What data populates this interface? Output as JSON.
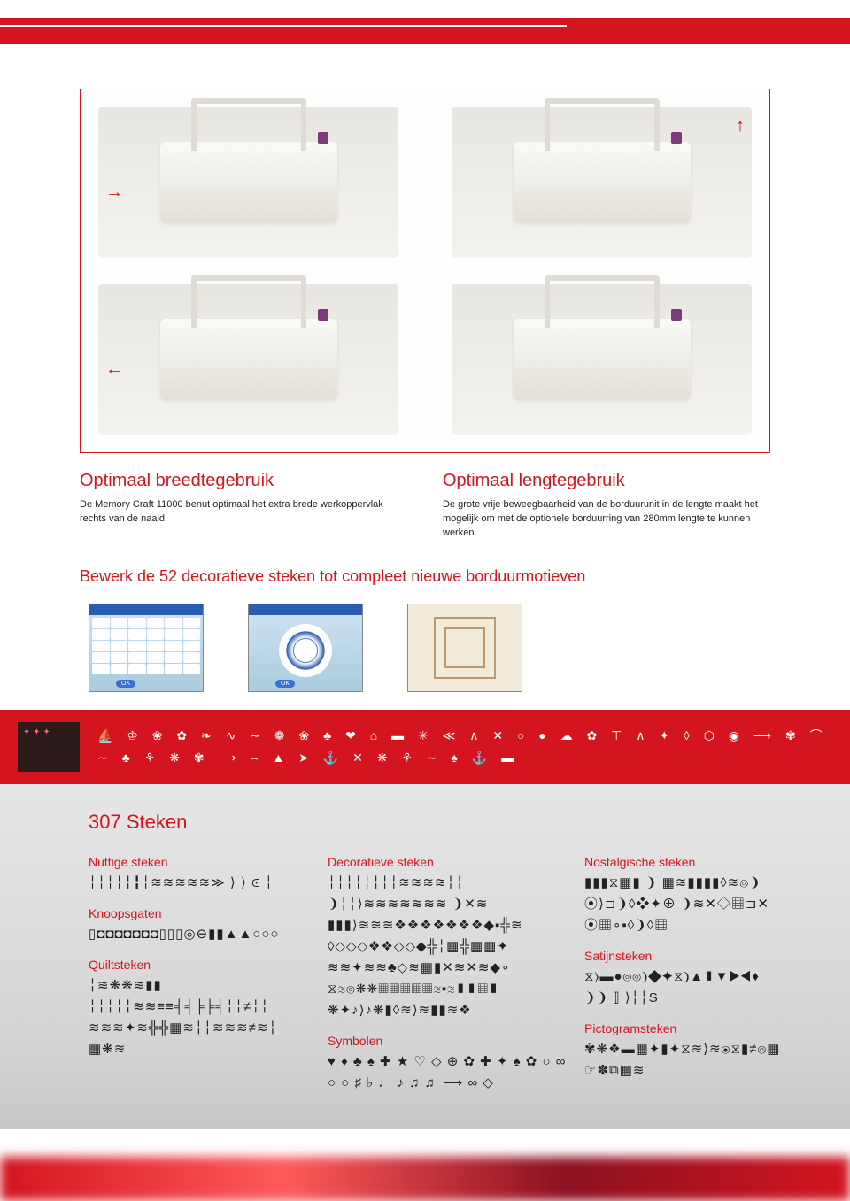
{
  "colors": {
    "accent": "#d4141e",
    "text": "#222222",
    "bg_gradient_start": "#e6e6e6",
    "bg_gradient_end": "#c8c8c8"
  },
  "captions": {
    "left": {
      "title": "Optimaal breedtegebruik",
      "body": "De Memory Craft 11000 benut optimaal het extra brede werkoppervlak rechts van de naald."
    },
    "right": {
      "title": "Optimaal lengtegebruik",
      "body": "De grote vrije beweegbaarheid van de borduurunit in de lengte maakt het mogelijk om met de optionele borduurring van 280mm lengte te kunnen werken."
    }
  },
  "subhead": "Bewerk de 52 decoratieve steken tot compleet nieuwe borduurmotieven",
  "red_strip_icons": "⛵ ♔ ❀ ✿ ❧ ∿ ∼ ❁ ❀ ♣ ❤ ⌂ ▬ ✳ ≪ ∧ ✕ ○ ● ☁ ✿ ⊤ ∧ ✦ ◊ ⬡ ◉ ⟶ ✾ ⌒ ∼ ♣ ⚘ ❋ ✾ ⟶ ⌢ ▲ ➤ ⚓ ✕ ❋ ⚘ ∼ ♠ ⚓ ▬",
  "steken": {
    "title": "307 Steken",
    "columns": [
      {
        "categories": [
          {
            "name": "Nuttige steken",
            "rows": [
              "╎╎╎╎╎╏╎≋≋≋≋≋≫ ⟩ ⟩ ⪽ ╎"
            ]
          },
          {
            "name": "Knoopsgaten",
            "rows": [
              "▯◘◘◘◘◘◘◘▯▯▯◎⊖▮▮▲▲○○○"
            ]
          },
          {
            "name": "Quiltsteken",
            "rows": [
              "╎≋❋❋≋▮▮",
              "╎╎╎╎╎≋≋≡≡╡╡╞╞╡╎╎≠╎╎",
              "≋≋≋✦≋╬╬▦≋╎╎≋≋≋≠≋╎",
              "▦❋≋"
            ]
          }
        ]
      },
      {
        "categories": [
          {
            "name": "Decoratieve steken",
            "rows": [
              "╎╎╎╎╎╎╎╎≋≋≋≋╎╎",
              "❩╎╎⟩≋≋≋≋≋≋≋ ❩✕≋",
              "▮▮▮⟩≋≋≋❖❖❖❖❖❖❖◆▪╬≋",
              "◊◇◇◇❖❖◇◇◆╬╎▦╬▦▦✦",
              "≋≋✦≋≋♣◇≋▦▮✕≋✕≋◆∘",
              "⧖≋⦾❋❋▦▦▦▦▦≋▪≋▮▮▦▮",
              "❋✦♪⟩♪❋▮◊≋⟩≋▮▮≋❖"
            ]
          },
          {
            "name": "Symbolen",
            "rows": [
              "♥ ♦ ♣ ♠ ✚ ★ ♡ ◇ ⊕ ✿ ✚ ✦ ♠ ✿ ○ ∞ ○ ○ ♯ ♭ ♩ ♪ ♫ ♬ ⟶ ∞ ◇"
            ]
          }
        ]
      },
      {
        "categories": [
          {
            "name": "Nostalgische steken",
            "rows": [
              "▮▮▮⧖▦▮ ❩ ▦≋▮▮▮▮◊≋⦾❩",
              "⦿⟩⊐❩◊❖✦⊕ ❩≋✕◇▦⊐✕",
              "⦿▦∘▪◊❩◊▦"
            ]
          },
          {
            "name": "Satijnsteken",
            "rows": [
              "⧖⟩▬●⦾⦾❩◆✦⧖❩▲▮▼▶◀♦",
              "❩❩ ⟧ ⟩╎╎S"
            ]
          },
          {
            "name": "Pictogramsteken",
            "rows": [
              "✾❋❖▬▦✦▮✦⧖≋⟩≋⦿⧖▮≠⦾▦",
              "☞✽⧉▦≋"
            ]
          }
        ]
      }
    ]
  },
  "thumbs": {
    "ok_label": "OK"
  }
}
